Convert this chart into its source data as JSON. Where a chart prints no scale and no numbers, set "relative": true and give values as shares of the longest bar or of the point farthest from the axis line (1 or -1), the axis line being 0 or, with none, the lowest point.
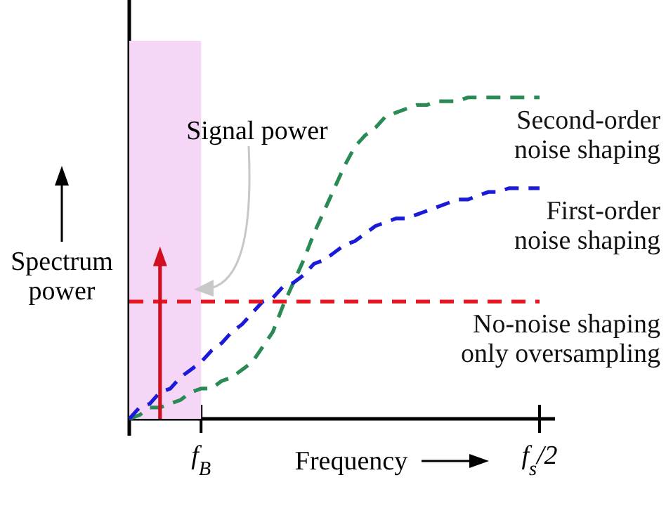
{
  "chart_data": {
    "type": "line",
    "relative": true,
    "xlabel": "Frequency",
    "ylabel": "Spectrum power",
    "annotations": [
      "Signal power"
    ],
    "categories": [
      null,
      null,
      null,
      null,
      null,
      null,
      null,
      "f$_{B}$",
      null,
      null,
      null,
      null,
      null,
      null,
      null,
      null,
      null,
      null,
      null,
      null,
      null,
      null,
      null,
      null,
      null,
      null,
      null,
      null,
      null,
      null,
      null,
      null,
      null,
      null,
      null,
      null,
      null,
      null,
      null,
      null,
      "f$_{s}$/2"
    ],
    "series": [
      {
        "type": "area",
        "color": "#f6d6f6",
        "values": [
          1,
          1,
          1,
          1,
          1,
          1,
          1,
          1,
          null,
          null,
          null,
          null,
          null,
          null,
          null,
          null,
          null,
          null,
          null,
          null,
          null,
          null,
          null,
          null,
          null,
          null,
          null,
          null,
          null,
          null,
          null,
          null,
          null,
          null,
          null,
          null,
          null,
          null,
          null,
          null,
          null
        ]
      },
      {
        "name": "Second-order noise shaping",
        "color": "#2a8a55",
        "line_style": "dashed",
        "values": [
          0,
          0.01,
          0.03,
          0.03,
          0.04,
          0.05,
          0.07,
          0.08,
          0.08,
          0.1,
          0.11,
          0.13,
          0.15,
          0.19,
          0.23,
          0.3,
          0.36,
          0.42,
          0.49,
          0.55,
          0.61,
          0.67,
          0.72,
          0.75,
          0.77,
          0.8,
          0.81,
          0.82,
          0.83,
          0.83,
          0.84,
          0.84,
          0.84,
          0.85,
          0.85,
          0.85,
          0.85,
          0.85,
          0.85,
          0.85,
          0.85
        ]
      },
      {
        "name": "First-order noise shaping",
        "color": "#1a1ad8",
        "line_style": "dashed",
        "values": [
          0,
          0.03,
          0.04,
          0.07,
          0.08,
          0.11,
          0.13,
          0.15,
          0.18,
          0.2,
          0.23,
          0.25,
          0.28,
          0.31,
          0.32,
          0.35,
          0.36,
          0.38,
          0.41,
          0.42,
          0.44,
          0.46,
          0.47,
          0.49,
          0.51,
          0.52,
          0.53,
          0.53,
          0.54,
          0.55,
          0.56,
          0.57,
          0.58,
          0.58,
          0.59,
          0.6,
          0.6,
          0.61,
          0.61,
          0.61,
          0.61
        ]
      },
      {
        "name": "No-noise shaping only oversampling",
        "color": "#e8141e",
        "line_style": "dashed",
        "values": [
          0.31,
          0.31,
          0.31,
          0.31,
          0.31,
          0.31,
          0.31,
          0.31,
          0.31,
          0.31,
          0.31,
          0.31,
          0.31,
          0.31,
          0.31,
          0.31,
          0.31,
          0.31,
          0.31,
          0.31,
          0.31,
          0.31,
          0.31,
          0.31,
          0.31,
          0.31,
          0.31,
          0.31,
          0.31,
          0.31,
          0.31,
          0.31,
          0.31,
          0.31,
          0.31,
          0.31,
          0.31,
          0.31,
          0.31,
          0.31,
          0.31
        ]
      },
      {
        "type": "lollipop",
        "color": "#d01020",
        "marker": "triangle",
        "values": [
          null,
          null,
          null,
          0.43,
          null,
          null,
          null,
          null,
          null,
          null,
          null,
          null,
          null,
          null,
          null,
          null,
          null,
          null,
          null,
          null,
          null,
          null,
          null,
          null,
          null,
          null,
          null,
          null,
          null,
          null,
          null,
          null,
          null,
          null,
          null,
          null,
          null,
          null,
          null,
          null,
          null
        ]
      }
    ]
  }
}
